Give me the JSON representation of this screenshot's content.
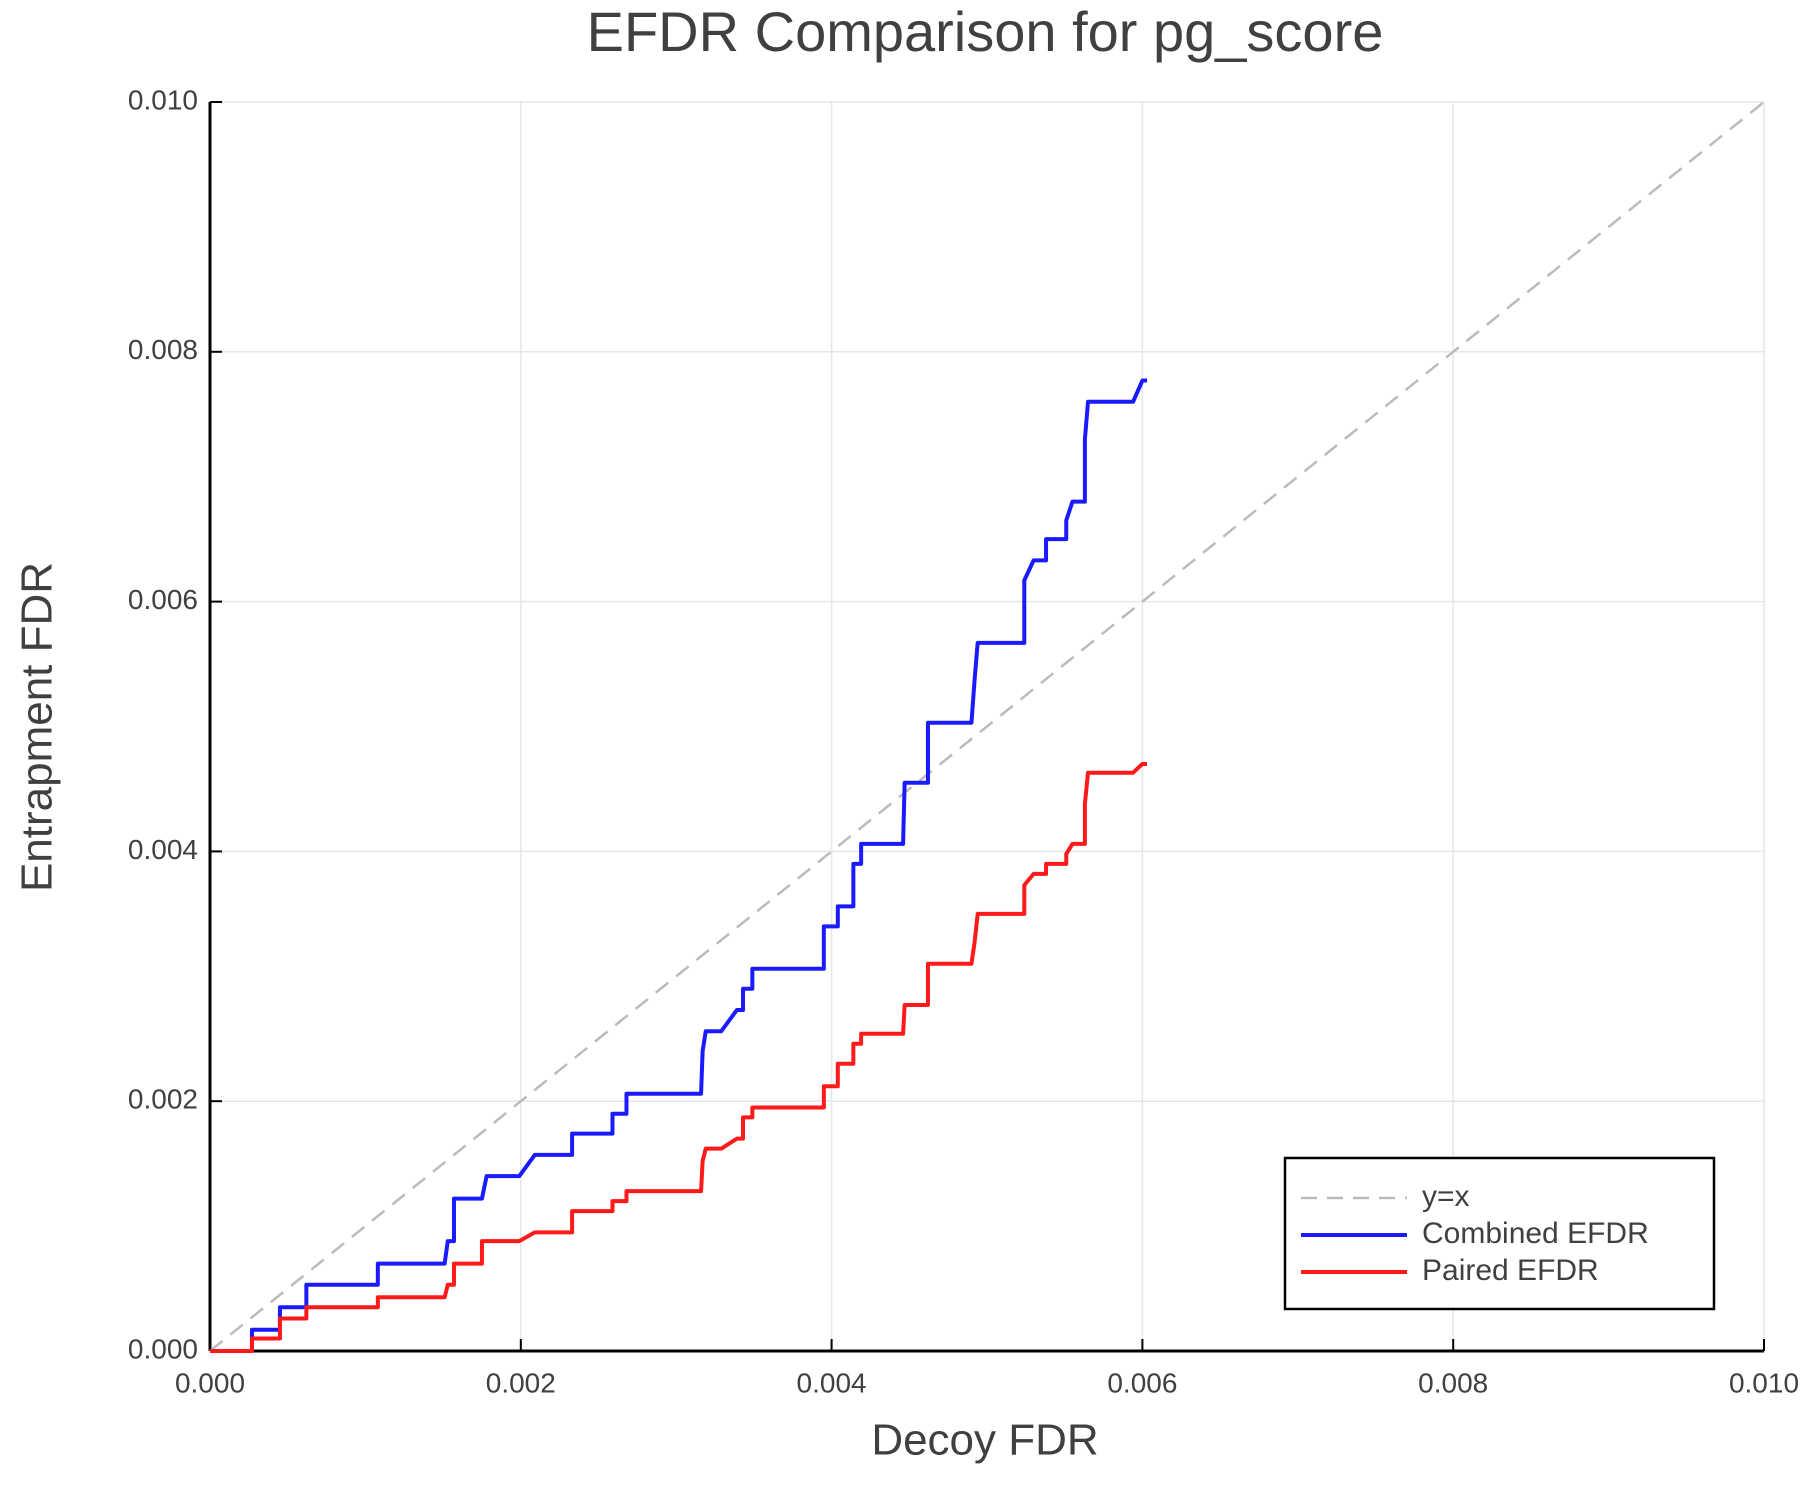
{
  "chart_data": {
    "type": "line",
    "title": "EFDR Comparison for pg_score",
    "x_label": "Decoy FDR",
    "y_label": "Entrapment FDR",
    "xlim": [
      0,
      0.01
    ],
    "ylim": [
      0,
      0.01
    ],
    "xticks": [
      {
        "value": 0,
        "label": "0.000"
      },
      {
        "value": 0.002,
        "label": "0.002"
      },
      {
        "value": 0.004,
        "label": "0.004"
      },
      {
        "value": 0.006,
        "label": "0.006"
      },
      {
        "value": 0.008,
        "label": "0.008"
      },
      {
        "value": 0.01,
        "label": "0.010"
      }
    ],
    "yticks": [
      {
        "value": 0,
        "label": "0.000"
      },
      {
        "value": 0.002,
        "label": "0.002"
      },
      {
        "value": 0.004,
        "label": "0.004"
      },
      {
        "value": 0.006,
        "label": "0.006"
      },
      {
        "value": 0.008,
        "label": "0.008"
      },
      {
        "value": 0.01,
        "label": "0.010"
      }
    ],
    "grid": true,
    "legend": "lower right",
    "series": [
      {
        "name": "y=x",
        "color": "#bbbbbb",
        "dash": true,
        "x": [
          0,
          0.01
        ],
        "values": [
          0,
          0.01
        ]
      },
      {
        "name": "Combined EFDR",
        "color": "#1a1aff",
        "dash": false,
        "x": [
          0,
          0.00027,
          0.00027,
          0.00045,
          0.00045,
          0.00062,
          0.00062,
          0.00108,
          0.00108,
          0.00151,
          0.00153,
          0.00157,
          0.00157,
          0.00175,
          0.00178,
          0.00199,
          0.00209,
          0.00233,
          0.00233,
          0.00259,
          0.00259,
          0.00268,
          0.00268,
          0.00316,
          0.00317,
          0.00319,
          0.00329,
          0.00339,
          0.00343,
          0.00343,
          0.00349,
          0.00349,
          0.00395,
          0.00395,
          0.00404,
          0.00404,
          0.00414,
          0.00414,
          0.00419,
          0.00419,
          0.00446,
          0.00447,
          0.00462,
          0.00462,
          0.0049,
          0.00492,
          0.00494,
          0.00524,
          0.00524,
          0.0053,
          0.00538,
          0.00538,
          0.00551,
          0.00551,
          0.00555,
          0.00563,
          0.00563,
          0.00565,
          0.00594,
          0.006,
          0.00603
        ],
        "values": [
          0,
          0,
          0.00017,
          0.00017,
          0.00035,
          0.00035,
          0.00053,
          0.00053,
          0.0007,
          0.0007,
          0.00088,
          0.00088,
          0.00122,
          0.00122,
          0.0014,
          0.0014,
          0.00157,
          0.00157,
          0.00174,
          0.00174,
          0.0019,
          0.0019,
          0.00206,
          0.00206,
          0.0024,
          0.00256,
          0.00256,
          0.00273,
          0.00273,
          0.0029,
          0.0029,
          0.00306,
          0.00306,
          0.0034,
          0.0034,
          0.00356,
          0.00356,
          0.0039,
          0.0039,
          0.00406,
          0.00406,
          0.00455,
          0.00455,
          0.00503,
          0.00503,
          0.00537,
          0.00567,
          0.00567,
          0.00617,
          0.00633,
          0.00633,
          0.0065,
          0.0065,
          0.00665,
          0.0068,
          0.0068,
          0.0073,
          0.0076,
          0.0076,
          0.00777,
          0.00777
        ]
      },
      {
        "name": "Paired EFDR",
        "color": "#ff1a1a",
        "dash": false,
        "x": [
          0,
          0.00027,
          0.00027,
          0.00045,
          0.00045,
          0.00062,
          0.00062,
          0.00108,
          0.00108,
          0.00151,
          0.00153,
          0.00157,
          0.00157,
          0.00175,
          0.00175,
          0.00199,
          0.00209,
          0.00233,
          0.00233,
          0.00259,
          0.00259,
          0.00268,
          0.00268,
          0.00316,
          0.00317,
          0.00319,
          0.00329,
          0.00339,
          0.00343,
          0.00343,
          0.00349,
          0.00349,
          0.00395,
          0.00395,
          0.00404,
          0.00404,
          0.00414,
          0.00414,
          0.00419,
          0.00419,
          0.00446,
          0.00447,
          0.00462,
          0.00462,
          0.0049,
          0.00492,
          0.00494,
          0.00524,
          0.00524,
          0.0053,
          0.00538,
          0.00538,
          0.00551,
          0.00551,
          0.00555,
          0.00563,
          0.00563,
          0.00565,
          0.00594,
          0.006,
          0.00603
        ],
        "values": [
          0,
          0,
          0.0001,
          0.0001,
          0.00026,
          0.00026,
          0.00035,
          0.00035,
          0.00043,
          0.00043,
          0.00053,
          0.00053,
          0.0007,
          0.0007,
          0.00088,
          0.00088,
          0.00095,
          0.00095,
          0.00112,
          0.00112,
          0.0012,
          0.0012,
          0.00128,
          0.00128,
          0.00152,
          0.00162,
          0.00162,
          0.0017,
          0.0017,
          0.00187,
          0.00187,
          0.00195,
          0.00195,
          0.00212,
          0.00212,
          0.0023,
          0.0023,
          0.00246,
          0.00246,
          0.00254,
          0.00254,
          0.00277,
          0.00277,
          0.0031,
          0.0031,
          0.00327,
          0.0035,
          0.0035,
          0.00373,
          0.00382,
          0.00382,
          0.0039,
          0.0039,
          0.00398,
          0.00406,
          0.00406,
          0.00438,
          0.00463,
          0.00463,
          0.0047,
          0.0047
        ]
      }
    ]
  }
}
